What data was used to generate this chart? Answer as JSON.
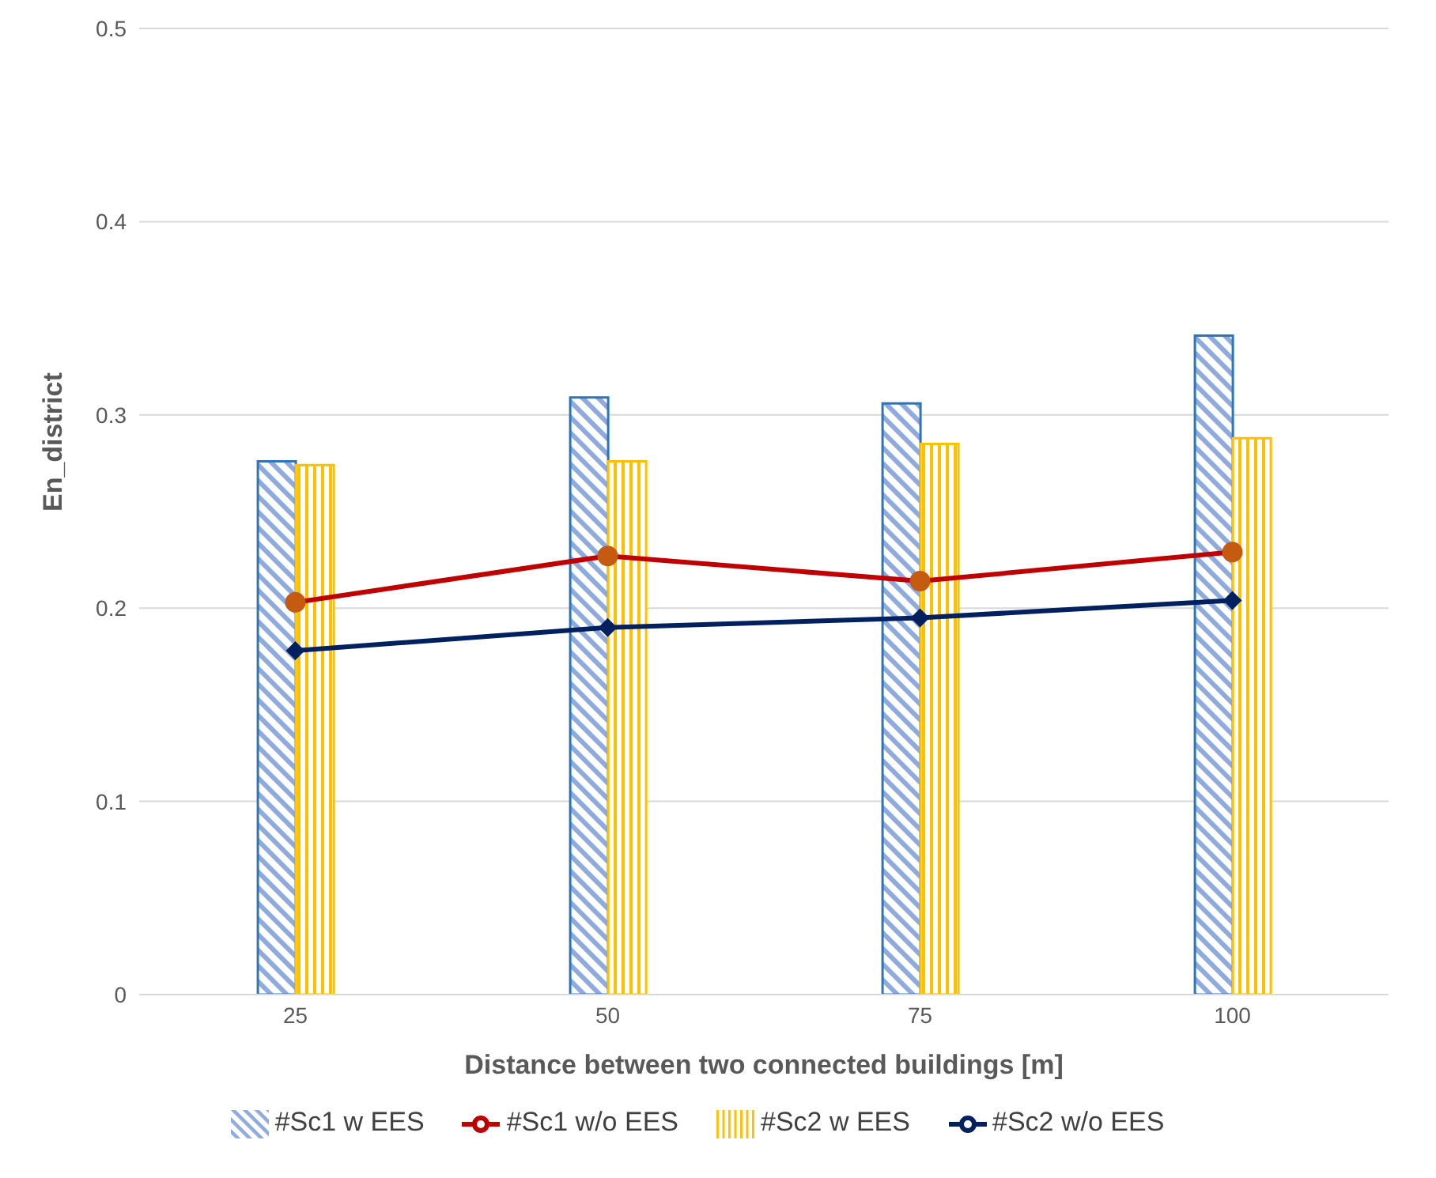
{
  "chart_data": {
    "type": "bar",
    "xlabel": "Distance between two connected buildings [m]",
    "ylabel": "En_district",
    "categories": [
      "25",
      "50",
      "75",
      "100"
    ],
    "series": [
      {
        "name": "#Sc1 w EES",
        "color": "#2e75b6",
        "values": [
          0.276,
          0.309,
          0.306,
          0.341
        ]
      },
      {
        "name": "#Sc2 w EES",
        "color": "#ffc000",
        "values": [
          0.274,
          0.276,
          0.285,
          0.288
        ]
      },
      {
        "name": "#Sc1 w/o EES",
        "type": "line",
        "color": "#c00000",
        "marker": "circle",
        "values": [
          0.203,
          0.227,
          0.214,
          0.229
        ]
      },
      {
        "name": "#Sc2 w/o EES",
        "type": "line",
        "color": "#002060",
        "marker": "diamond",
        "values": [
          0.178,
          0.19,
          0.195,
          0.204
        ]
      }
    ],
    "ylim": [
      0,
      0.5
    ],
    "yticks": [
      0,
      0.1,
      0.2,
      0.3,
      0.4,
      0.5
    ],
    "grid": "y",
    "legend": "bottom"
  }
}
